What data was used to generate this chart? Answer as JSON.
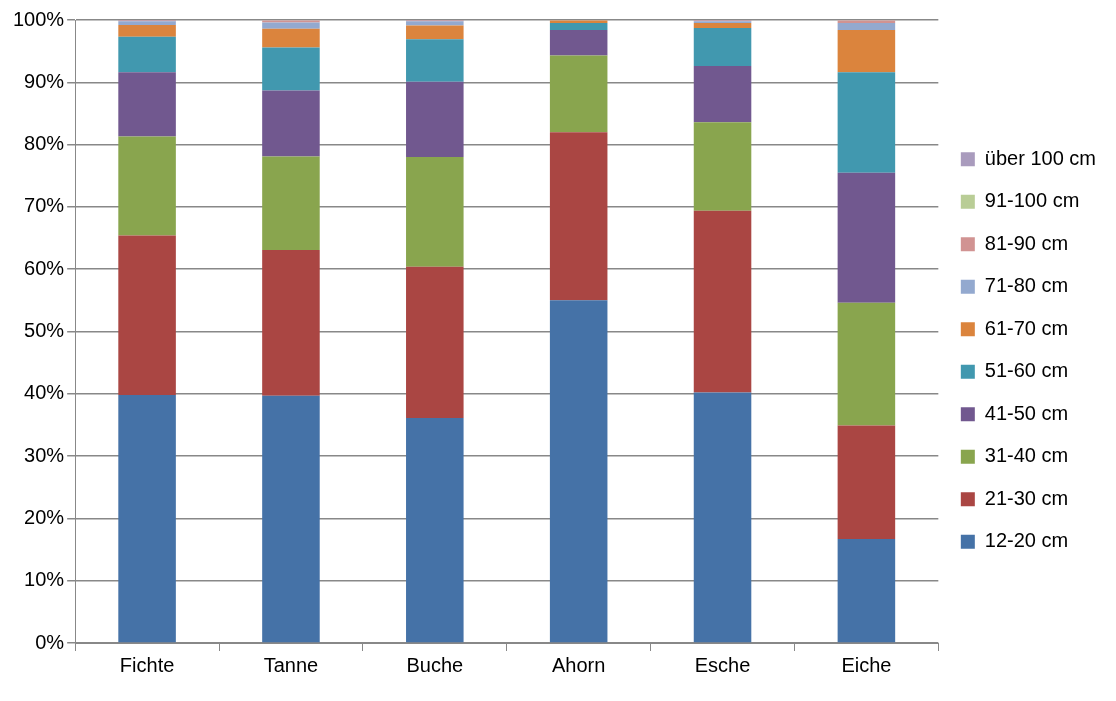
{
  "chart_data": {
    "type": "bar",
    "stacked": true,
    "categories": [
      "Fichte",
      "Tanne",
      "Buche",
      "Ahorn",
      "Esche",
      "Eiche"
    ],
    "series": [
      {
        "name": "12-20 cm",
        "color": "#4572a7",
        "values": [
          39.8,
          39.7,
          36.1,
          55.0,
          40.2,
          16.7
        ]
      },
      {
        "name": "21-30 cm",
        "color": "#aa4643",
        "values": [
          25.6,
          23.4,
          24.3,
          27.0,
          29.2,
          18.2
        ]
      },
      {
        "name": "31-40 cm",
        "color": "#89a54e",
        "values": [
          15.9,
          15.0,
          17.6,
          12.3,
          14.2,
          19.7
        ]
      },
      {
        "name": "41-50 cm",
        "color": "#71588f",
        "values": [
          10.3,
          10.6,
          12.1,
          4.1,
          9.0,
          20.9
        ]
      },
      {
        "name": "51-60 cm",
        "color": "#4198af",
        "values": [
          5.7,
          6.9,
          6.8,
          1.1,
          6.1,
          16.1
        ]
      },
      {
        "name": "61-70 cm",
        "color": "#db843d",
        "values": [
          1.9,
          3.0,
          2.2,
          0.4,
          0.8,
          6.8
        ]
      },
      {
        "name": "71-80 cm",
        "color": "#93a9cf",
        "values": [
          0.6,
          1.0,
          0.7,
          null,
          0.3,
          1.1
        ]
      },
      {
        "name": "81-90 cm",
        "color": "#d19392",
        "values": [
          0.1,
          0.3,
          0.1,
          0,
          0.1,
          0.4
        ]
      },
      {
        "name": "91-100 cm",
        "color": "#b9cd96",
        "values": [
          0,
          0,
          0,
          0,
          0,
          0
        ]
      },
      {
        "name": "über 100 cm",
        "color": "#a99bbd",
        "values": [
          0.1,
          null,
          0.1,
          0,
          0.1,
          null
        ]
      }
    ],
    "ylim": [
      0,
      100
    ],
    "yticks": [
      {
        "value": 0,
        "label": "0%"
      },
      {
        "value": 10,
        "label": "10%"
      },
      {
        "value": 20,
        "label": "20%"
      },
      {
        "value": 30,
        "label": "30%"
      },
      {
        "value": 40,
        "label": "40%"
      },
      {
        "value": 50,
        "label": "50%"
      },
      {
        "value": 60,
        "label": "60%"
      },
      {
        "value": 70,
        "label": "70%"
      },
      {
        "value": 80,
        "label": "80%"
      },
      {
        "value": 90,
        "label": "90%"
      },
      {
        "value": 100,
        "label": "100%"
      }
    ],
    "grid": "y",
    "legend": "right"
  }
}
